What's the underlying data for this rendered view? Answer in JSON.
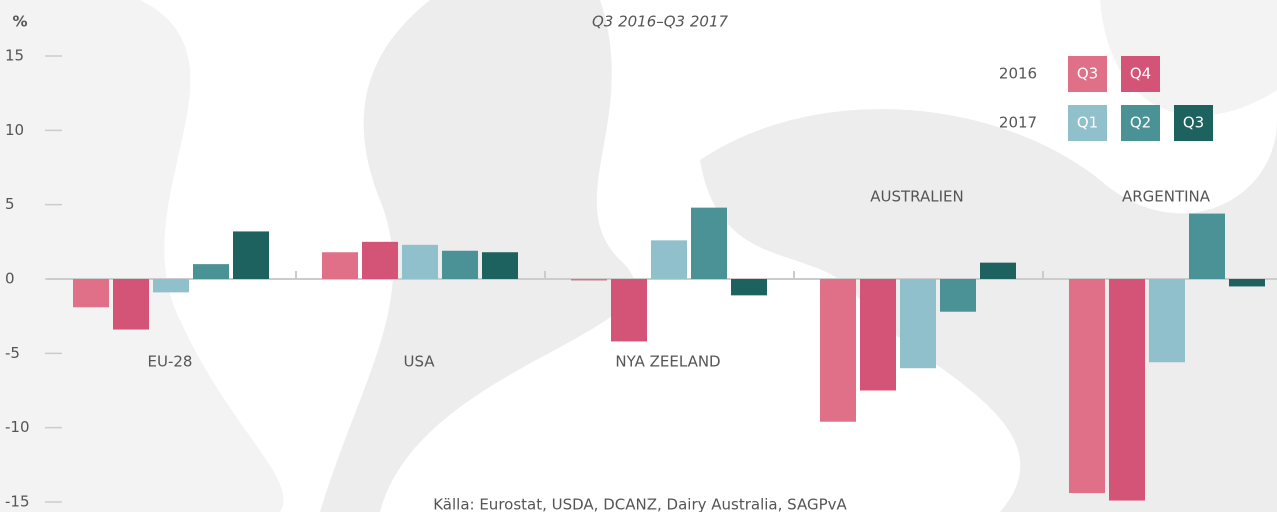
{
  "chart_data": {
    "type": "bar",
    "subtitle": "Q3 2016–Q3 2017",
    "y_label": "%",
    "source": "Källa: Eurostat, USDA, DCANZ, Dairy Australia, SAGPvA",
    "categories": [
      "EU-28",
      "USA",
      "NYA ZEELAND",
      "AUSTRALIEN",
      "ARGENTINA"
    ],
    "groups": [
      {
        "year": "2016",
        "series": [
          {
            "name": "Q3",
            "color": "#e07088",
            "values": [
              -1.9,
              1.8,
              -0.1,
              -9.6,
              -14.4
            ]
          },
          {
            "name": "Q4",
            "color": "#d45478",
            "values": [
              -3.4,
              2.5,
              -4.2,
              -7.5,
              -14.9
            ]
          }
        ]
      },
      {
        "year": "2017",
        "series": [
          {
            "name": "Q1",
            "color": "#90c0cc",
            "values": [
              -0.9,
              2.3,
              2.6,
              -6.0,
              -5.6
            ]
          },
          {
            "name": "Q2",
            "color": "#4a9296",
            "values": [
              1.0,
              1.9,
              4.8,
              -2.2,
              4.4
            ]
          },
          {
            "name": "Q3",
            "color": "#1e6260",
            "values": [
              3.2,
              1.8,
              -1.1,
              1.1,
              -0.5
            ]
          }
        ]
      }
    ],
    "ylim": [
      -15,
      15
    ],
    "yticks": [
      -15,
      -10,
      -5,
      0,
      5,
      10,
      15
    ]
  }
}
